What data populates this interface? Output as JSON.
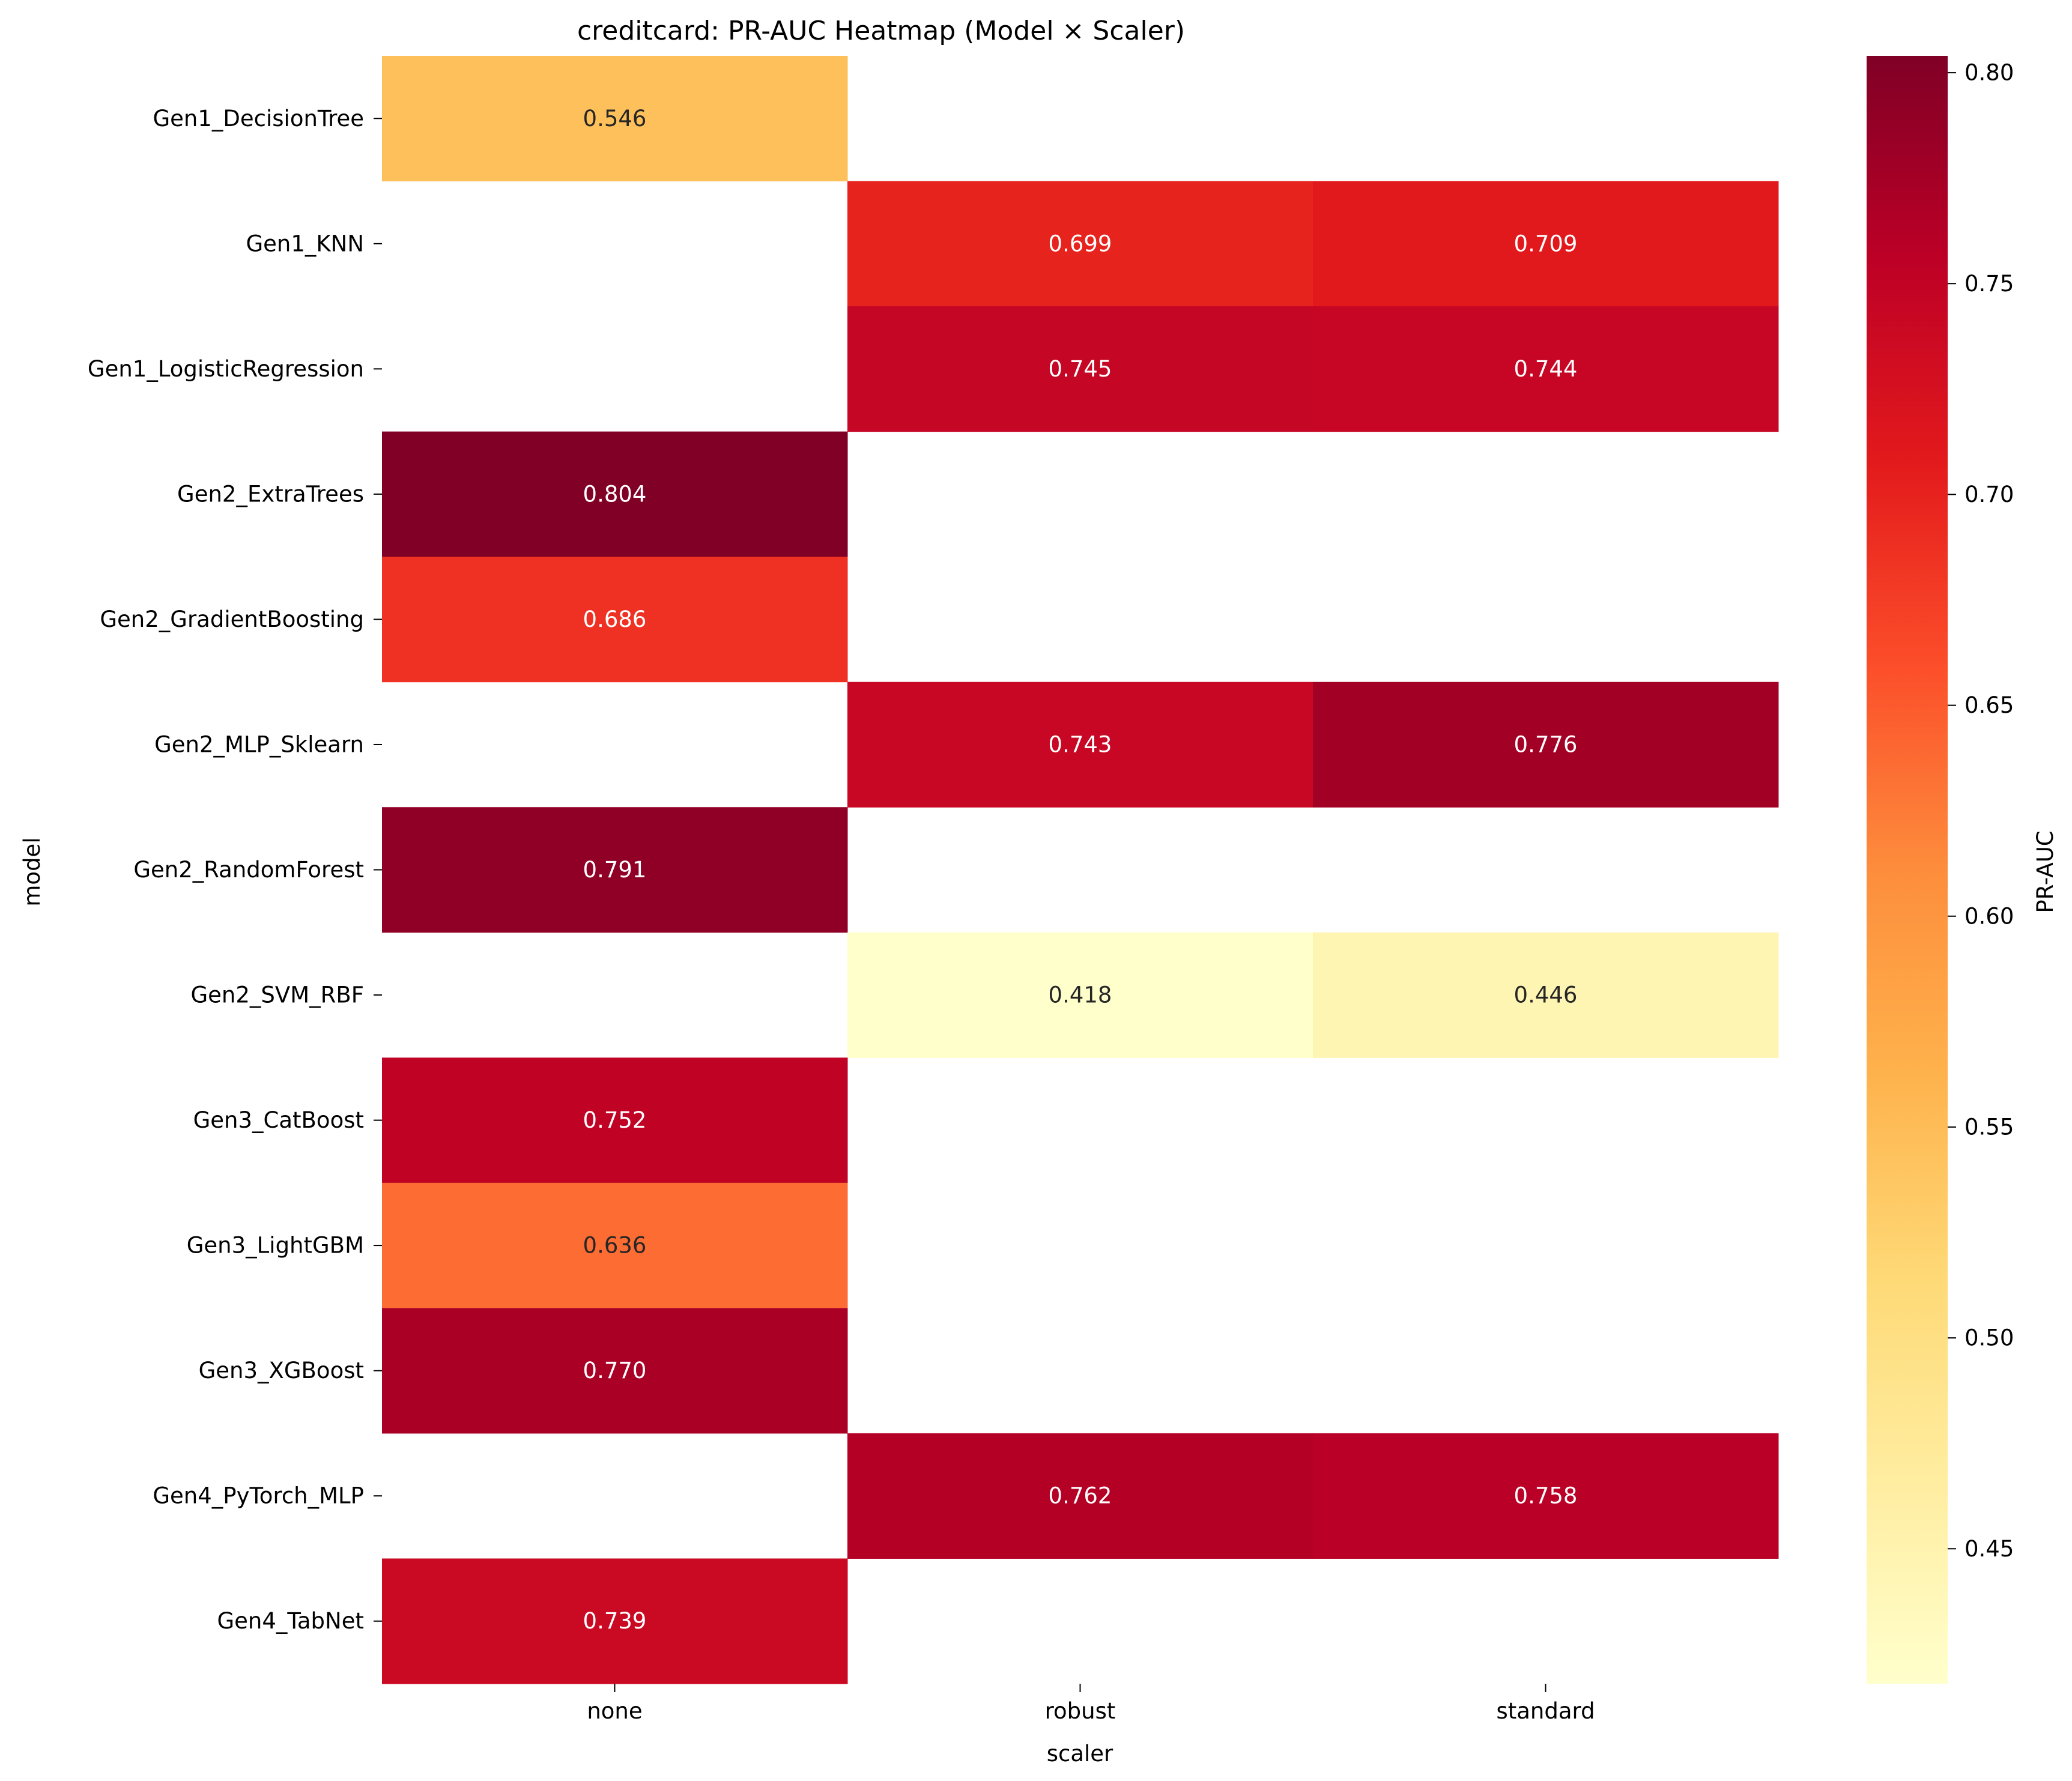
{
  "chart_data": {
    "type": "heatmap",
    "title": "creditcard: PR-AUC Heatmap (Model × Scaler)",
    "xlabel": "scaler",
    "ylabel": "model",
    "colorbar_label": "PR-AUC",
    "colormap": "YlOrRd",
    "colorbar_range": [
      0.418,
      0.804
    ],
    "colorbar_ticks": [
      "0.45",
      "0.50",
      "0.55",
      "0.60",
      "0.65",
      "0.70",
      "0.75",
      "0.80"
    ],
    "x_categories": [
      "none",
      "robust",
      "standard"
    ],
    "y_categories": [
      "Gen1_DecisionTree",
      "Gen1_KNN",
      "Gen1_LogisticRegression",
      "Gen2_ExtraTrees",
      "Gen2_GradientBoosting",
      "Gen2_MLP_Sklearn",
      "Gen2_RandomForest",
      "Gen2_SVM_RBF",
      "Gen3_CatBoost",
      "Gen3_LightGBM",
      "Gen3_XGBoost",
      "Gen4_PyTorch_MLP",
      "Gen4_TabNet"
    ],
    "values": [
      [
        0.546,
        null,
        null
      ],
      [
        null,
        0.699,
        0.709
      ],
      [
        null,
        0.745,
        0.744
      ],
      [
        0.804,
        null,
        null
      ],
      [
        0.686,
        null,
        null
      ],
      [
        null,
        0.743,
        0.776
      ],
      [
        0.791,
        null,
        null
      ],
      [
        null,
        0.418,
        0.446
      ],
      [
        0.752,
        null,
        null
      ],
      [
        0.636,
        null,
        null
      ],
      [
        0.77,
        null,
        null
      ],
      [
        null,
        0.762,
        0.758
      ],
      [
        0.739,
        null,
        null
      ]
    ],
    "value_format": "0.000",
    "grid": false,
    "legend": "colorbar-right"
  }
}
